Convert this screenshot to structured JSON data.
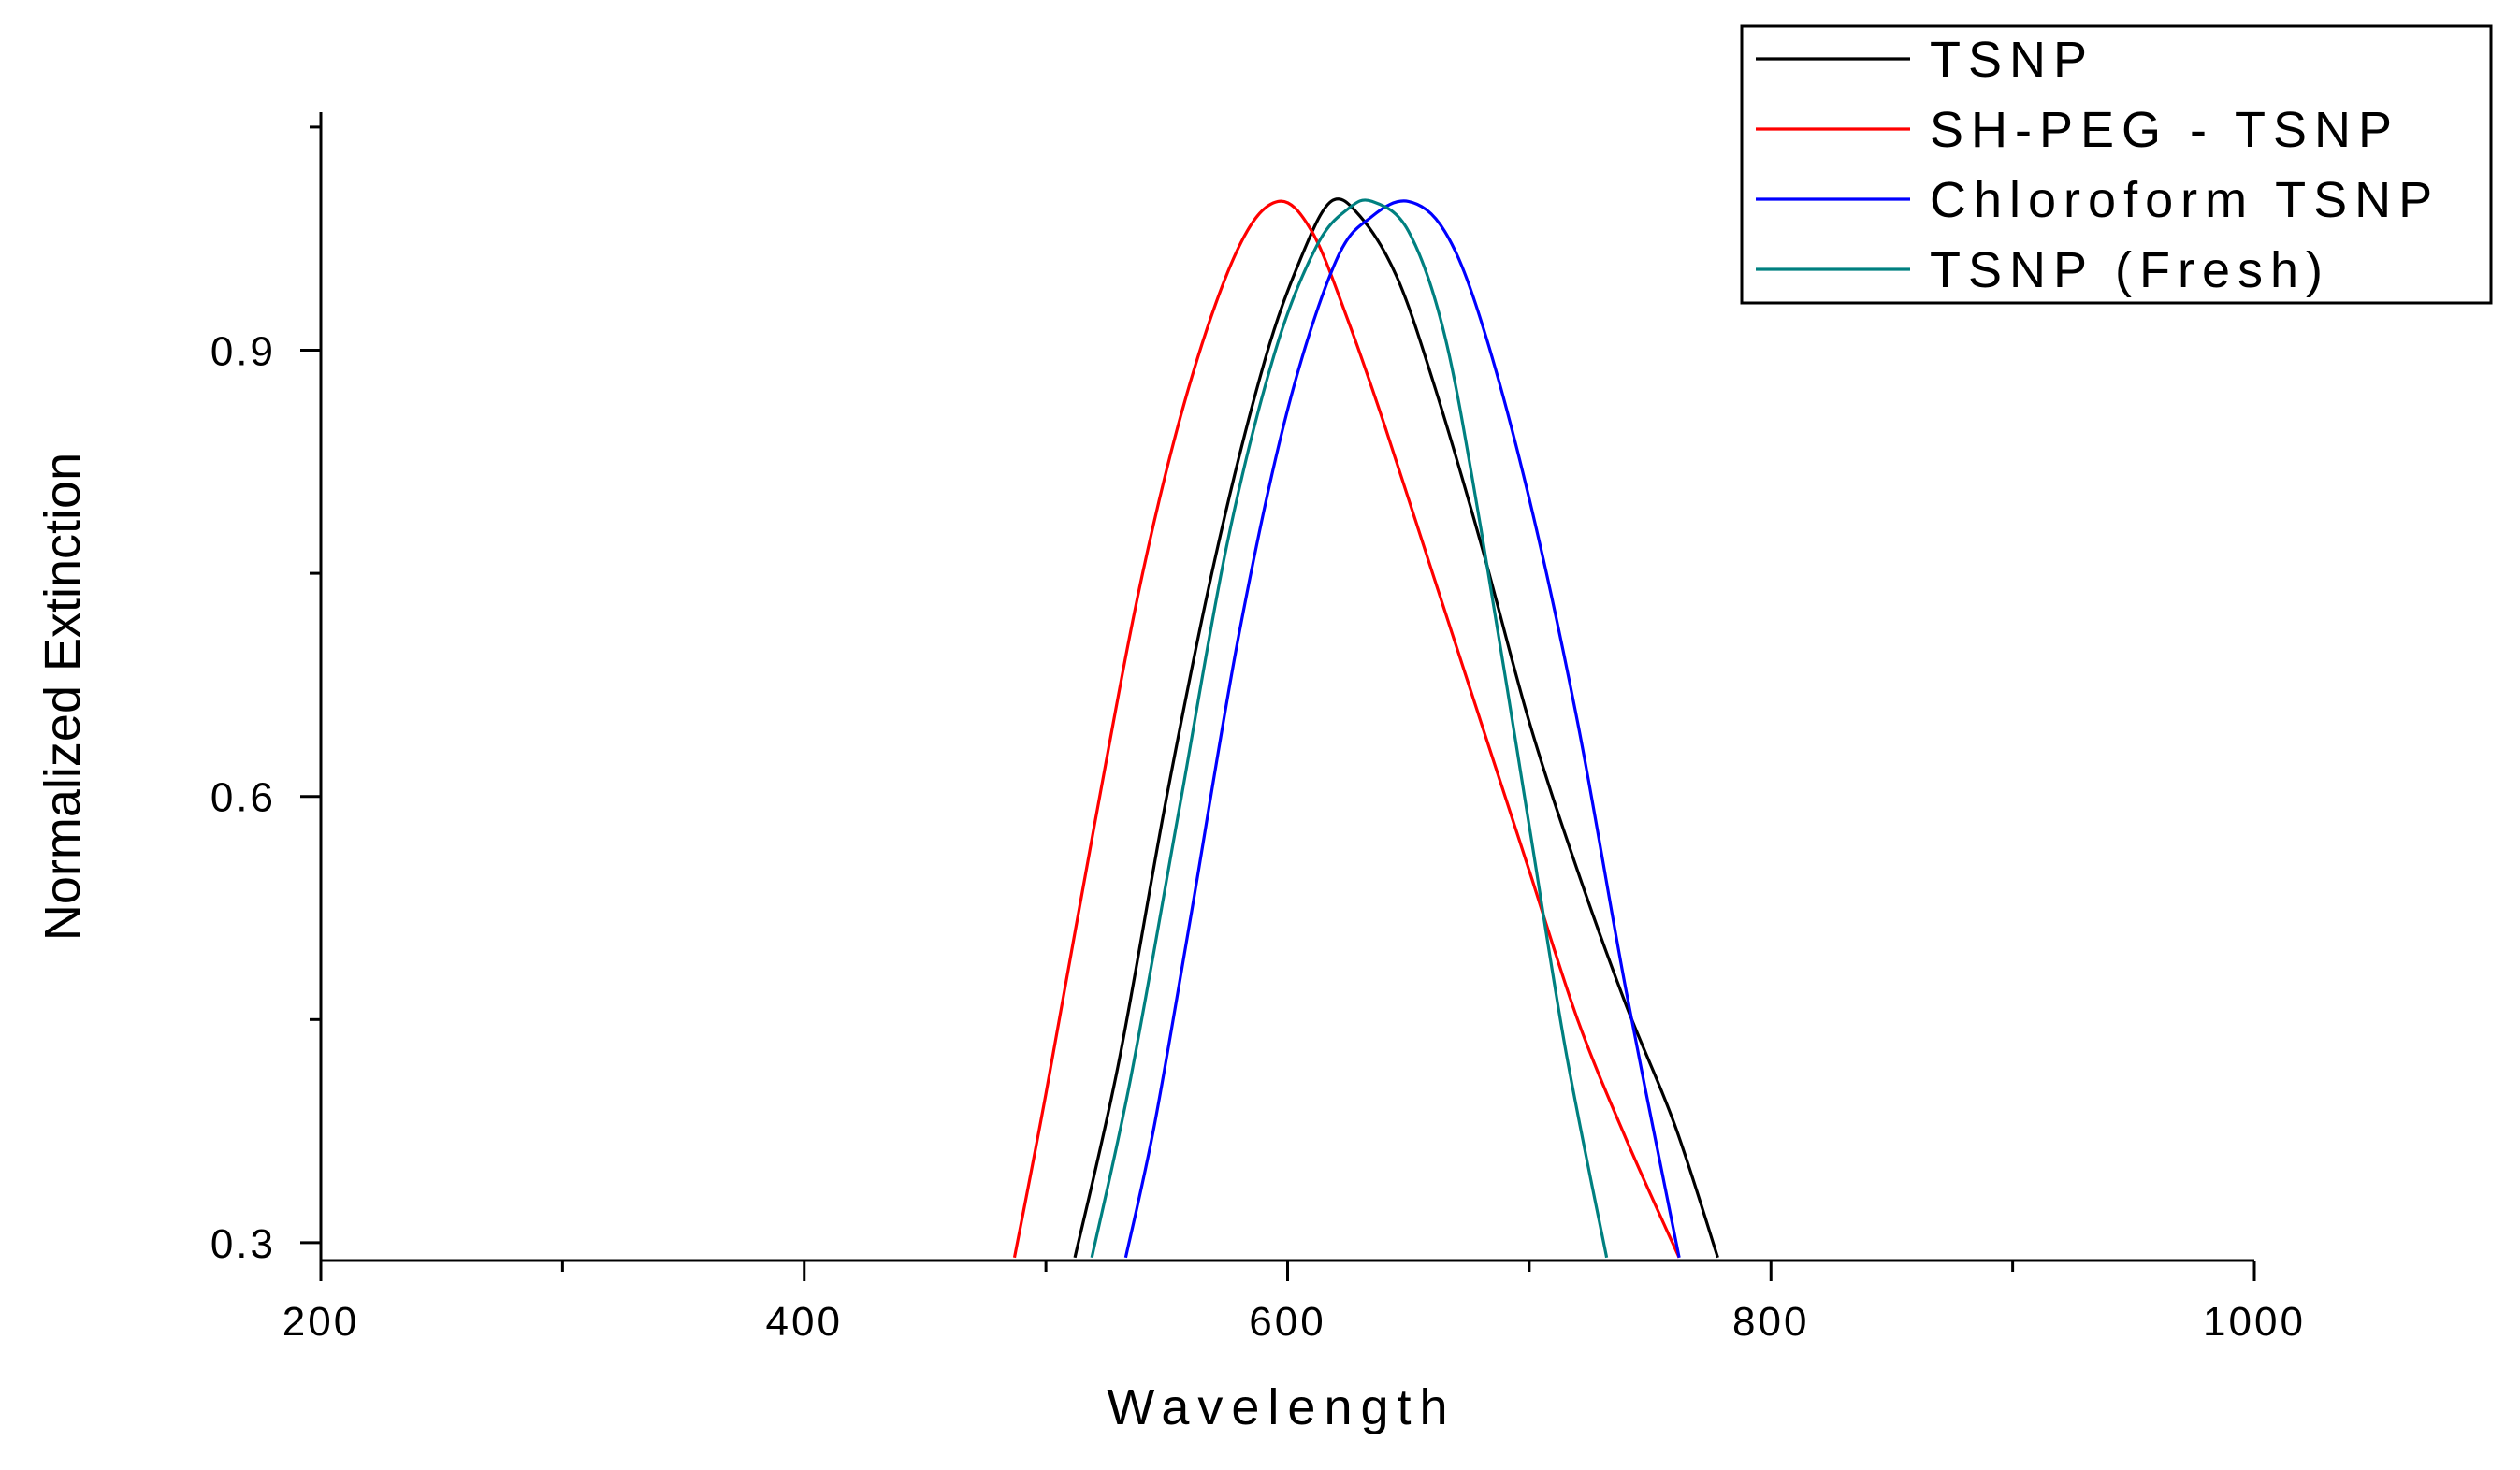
{
  "chart_data": {
    "type": "line",
    "title": "",
    "xlabel": "Wavelength",
    "ylabel": "Normalized Extinction",
    "xlim": [
      200,
      1000
    ],
    "ylim": [
      0.288,
      1.06
    ],
    "x_ticks": [
      200,
      400,
      600,
      800,
      1000
    ],
    "x_minor_ticks": [
      300,
      500,
      700,
      900
    ],
    "y_ticks": [
      0.3,
      0.6,
      0.9
    ],
    "y_minor_ticks": [
      0.45,
      0.75,
      1.05
    ],
    "x_tick_labels": [
      "200",
      "400",
      "600",
      "800",
      "1000"
    ],
    "y_tick_labels": [
      "0.3",
      "0.6",
      "0.9"
    ],
    "legend_position": "top-right",
    "series": [
      {
        "name": "TSNP",
        "color": "#000000",
        "x": [
          512,
          530,
          550,
          570,
          590,
          605,
          618,
          630,
          645,
          660,
          680,
          700,
          720,
          740,
          760,
          778
        ],
        "y": [
          0.29,
          0.42,
          0.6,
          0.76,
          0.89,
          0.96,
          1.0,
          0.99,
          0.95,
          0.88,
          0.77,
          0.65,
          0.55,
          0.46,
          0.38,
          0.29
        ]
      },
      {
        "name": "SH-PEG - TSNP",
        "color": "#ff0000",
        "x": [
          487,
          500,
          520,
          540,
          560,
          580,
          596,
          610,
          625,
          640,
          660,
          680,
          700,
          720,
          740,
          762
        ],
        "y": [
          0.29,
          0.4,
          0.58,
          0.75,
          0.88,
          0.97,
          1.0,
          0.98,
          0.92,
          0.85,
          0.75,
          0.65,
          0.55,
          0.45,
          0.37,
          0.29
        ]
      },
      {
        "name": "Chloroform TSNP",
        "color": "#0000ff",
        "x": [
          533,
          545,
          560,
          580,
          600,
          620,
          635,
          650,
          665,
          680,
          700,
          720,
          740,
          762
        ],
        "y": [
          0.29,
          0.38,
          0.52,
          0.71,
          0.86,
          0.96,
          0.99,
          1.0,
          0.98,
          0.92,
          0.8,
          0.65,
          0.47,
          0.29
        ]
      },
      {
        "name": "TSNP (Fresh)",
        "color": "#008080",
        "x": [
          519,
          535,
          555,
          575,
          595,
          612,
          625,
          635,
          650,
          665,
          680,
          700,
          715,
          732
        ],
        "y": [
          0.29,
          0.41,
          0.59,
          0.77,
          0.9,
          0.97,
          0.995,
          1.0,
          0.98,
          0.91,
          0.78,
          0.58,
          0.43,
          0.29
        ]
      }
    ]
  }
}
